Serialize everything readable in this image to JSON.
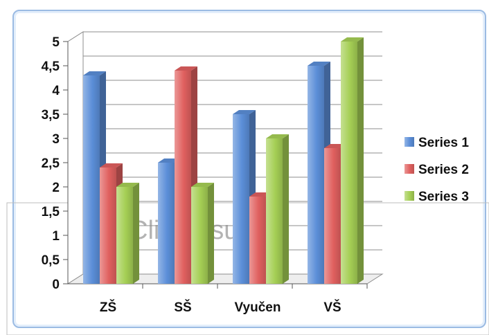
{
  "placeholder": {
    "text": "Cli           o a      su        e"
  },
  "chart_data": {
    "type": "bar",
    "style": "3d-clustered-column",
    "categories": [
      "ZŠ",
      "SŠ",
      "Vyučen",
      "VŠ"
    ],
    "series": [
      {
        "name": "Series 1",
        "values": [
          4.3,
          2.5,
          3.5,
          4.5
        ],
        "color": "#5b8ed8"
      },
      {
        "name": "Series 2",
        "values": [
          2.4,
          4.4,
          1.8,
          2.8
        ],
        "color": "#e0605f"
      },
      {
        "name": "Series 3",
        "values": [
          2.0,
          2.0,
          3.0,
          5.0
        ],
        "color": "#a5cf55"
      }
    ],
    "ylim": [
      0,
      5
    ],
    "yticks": [
      "0",
      "0,5",
      "1",
      "1,5",
      "2",
      "2,5",
      "3",
      "3,5",
      "4",
      "4,5",
      "5"
    ],
    "grid": true,
    "legend_position": "right"
  }
}
